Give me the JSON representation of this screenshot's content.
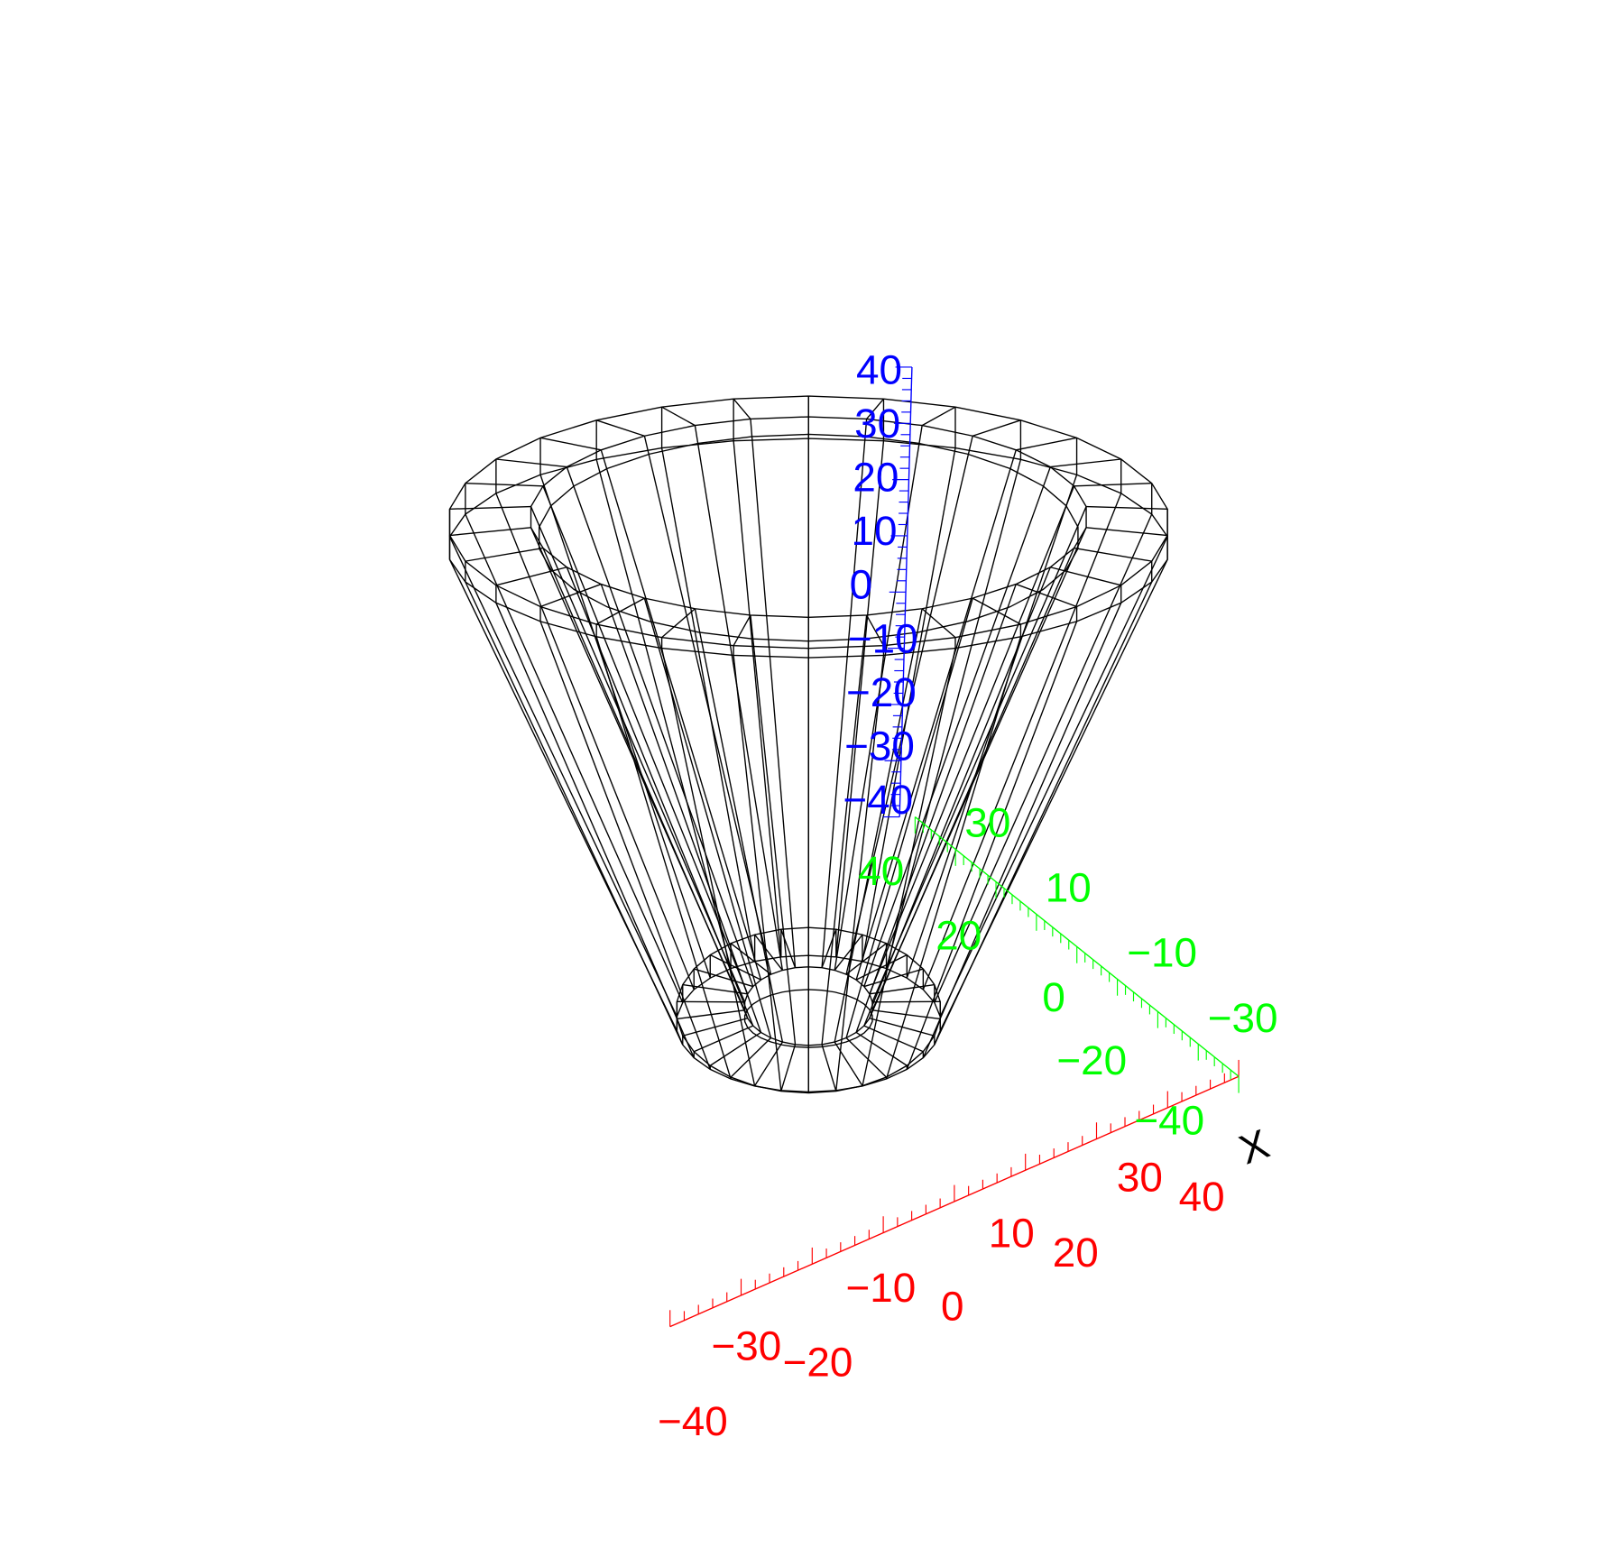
{
  "colors": {
    "background": "#ffffff",
    "mesh": "#000000",
    "x_axis": "#ff0000",
    "y_axis": "#00ff00",
    "z_axis": "#0000ff",
    "axis_title": "#000000"
  },
  "chart_data": {
    "type": "3d-wireframe",
    "shape": "hollow cone (inner and outer surfaces)",
    "x_axis": {
      "title": "X",
      "range": [
        -40,
        40
      ],
      "tick_labels": [
        "−40",
        "−30",
        "−20",
        "−10",
        "0",
        "10",
        "20",
        "30",
        "40"
      ]
    },
    "y_axis": {
      "range": [
        -40,
        40
      ],
      "tick_labels": [
        "40",
        "30",
        "20",
        "10",
        "0",
        "−10",
        "−20",
        "−30",
        "−40"
      ]
    },
    "z_axis": {
      "range": [
        -40,
        40
      ],
      "tick_labels": [
        "40",
        "30",
        "20",
        "10",
        "0",
        "−10",
        "−20",
        "−30",
        "−40"
      ]
    }
  }
}
